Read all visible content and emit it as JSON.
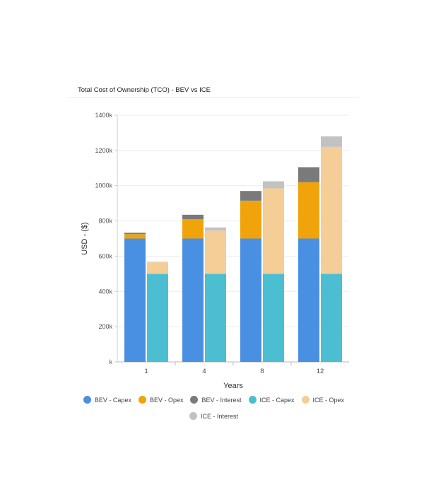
{
  "chart_data": {
    "type": "bar",
    "stacked": true,
    "title": "Total Cost of Ownership (TCO) - BEV vs ICE",
    "xlabel": "Years",
    "ylabel": "USD - ($)",
    "categories": [
      "1",
      "4",
      "8",
      "12"
    ],
    "stacks": [
      "BEV",
      "ICE"
    ],
    "ylim": [
      0,
      1400000
    ],
    "yticks": [
      0,
      200000,
      400000,
      600000,
      800000,
      1000000,
      1200000,
      1400000
    ],
    "ytick_labels": [
      "k",
      "200k",
      "400k",
      "600k",
      "800k",
      "1000k",
      "1200k",
      "1400k"
    ],
    "grid": true,
    "legend_position": "bottom",
    "series": [
      {
        "name": "BEV - Capex",
        "stack": "BEV",
        "color": "#4a90e2",
        "values": [
          700000,
          700000,
          700000,
          700000
        ]
      },
      {
        "name": "BEV - Opex",
        "stack": "BEV",
        "color": "#f0a30a",
        "values": [
          25000,
          110000,
          215000,
          320000
        ]
      },
      {
        "name": "BEV - Interest",
        "stack": "BEV",
        "color": "#7a7a7a",
        "values": [
          8000,
          25000,
          55000,
          85000
        ]
      },
      {
        "name": "ICE - Capex",
        "stack": "ICE",
        "color": "#4bbfd1",
        "values": [
          500000,
          500000,
          500000,
          500000
        ]
      },
      {
        "name": "ICE - Opex",
        "stack": "ICE",
        "color": "#f5cd97",
        "values": [
          65000,
          245000,
          485000,
          720000
        ]
      },
      {
        "name": "ICE - Interest",
        "stack": "ICE",
        "color": "#c2c2c2",
        "values": [
          3000,
          18000,
          40000,
          60000
        ]
      }
    ]
  }
}
